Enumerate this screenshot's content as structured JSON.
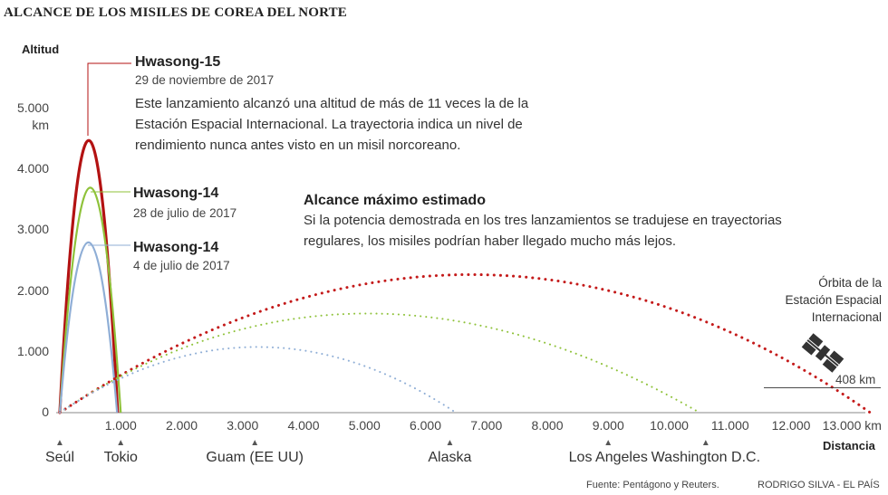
{
  "title": "ALCANCE DE LOS MISILES DE COREA DEL NORTE",
  "colors": {
    "hwasong15": "#b31212",
    "hwasong14_jul28": "#8fc23a",
    "hwasong14_jul4": "#8faed6",
    "max_range": "#c41a1a",
    "axis": "#888888"
  },
  "chart_data": {
    "type": "line",
    "title": "ALCANCE DE LOS MISILES DE COREA DEL NORTE",
    "xlabel": "Distancia",
    "ylabel": "Altitud",
    "x_unit": "km",
    "y_unit": "km",
    "xlim": [
      0,
      13200
    ],
    "ylim": [
      0,
      5000
    ],
    "x_ticks": [
      "1.000",
      "2.000",
      "3.000",
      "4.000",
      "5.000",
      "6.000",
      "7.000",
      "8.000",
      "9.000",
      "10.000",
      "11.000",
      "12.000",
      "13.000"
    ],
    "x_tick_values": [
      1000,
      2000,
      3000,
      4000,
      5000,
      6000,
      7000,
      8000,
      9000,
      10000,
      11000,
      12000,
      13000
    ],
    "x_tick_last_unit": "km",
    "y_ticks": [
      "0",
      "1.000",
      "2.000",
      "3.000",
      "4.000",
      "5.000"
    ],
    "y_tick_values": [
      0,
      1000,
      2000,
      3000,
      4000,
      5000
    ],
    "y_tick_unit": "km",
    "series": [
      {
        "name": "Hwasong-15",
        "date": "29 de noviembre de 2017",
        "style": "solid",
        "color_key": "hwasong15",
        "x": [
          0,
          475,
          950
        ],
        "y": [
          0,
          4475,
          0
        ]
      },
      {
        "name": "Hwasong-14",
        "date": "28 de julio de 2017",
        "style": "solid",
        "color_key": "hwasong14_jul28",
        "x": [
          0,
          500,
          1000
        ],
        "y": [
          0,
          3700,
          0
        ]
      },
      {
        "name": "Hwasong-14",
        "date": "4 de julio de 2017",
        "style": "solid",
        "color_key": "hwasong14_jul4",
        "x": [
          0,
          470,
          940
        ],
        "y": [
          0,
          2800,
          0
        ]
      },
      {
        "style": "dotted",
        "color_key": "max_range",
        "x": [
          0,
          6750,
          13300
        ],
        "y": [
          0,
          2270,
          0
        ]
      },
      {
        "style": "dotted",
        "color_key": "hwasong14_jul28",
        "x": [
          0,
          5050,
          10500
        ],
        "y": [
          0,
          1630,
          0
        ]
      },
      {
        "style": "dotted",
        "color_key": "hwasong14_jul4",
        "x": [
          0,
          3250,
          6500
        ],
        "y": [
          0,
          1080,
          0
        ]
      }
    ],
    "reference_line": {
      "y": 408,
      "label": "408 km"
    }
  },
  "annotations": {
    "h15": {
      "name": "Hwasong-15",
      "date": "29 de noviembre de 2017",
      "body": "Este lanzamiento alcanzó una altitud de más de 11 veces la de la Estación Espacial Internacional. La trayectoria indica un nivel de rendimiento nunca antes visto en un misil norcoreano."
    },
    "h14b": {
      "name": "Hwasong-14",
      "date": "28 de julio de 2017"
    },
    "h14a": {
      "name": "Hwasong-14",
      "date": "4 de julio de 2017"
    },
    "max": {
      "title": "Alcance máximo estimado",
      "body": "Si la potencia demostrada en los tres lanzamientos se tradujese en trayectorias regulares, los misiles podrían haber llegado mucho más lejos."
    },
    "iss": {
      "line1": "Órbita de la",
      "line2": "Estación Espacial",
      "line3": "Internacional",
      "icon": "satellite-icon"
    }
  },
  "cities": [
    {
      "name": "Seúl",
      "x": 0
    },
    {
      "name": "Tokio",
      "x": 1000
    },
    {
      "name": "Guam (EE UU)",
      "x": 3200
    },
    {
      "name": "Alaska",
      "x": 6400
    },
    {
      "name": "Los Angeles",
      "x": 9000
    },
    {
      "name": "Washington D.C.",
      "x": 10600
    }
  ],
  "footer": {
    "source": "Fuente: Pentágono y Reuters.",
    "credit": "RODRIGO SILVA - EL PAÍS"
  }
}
